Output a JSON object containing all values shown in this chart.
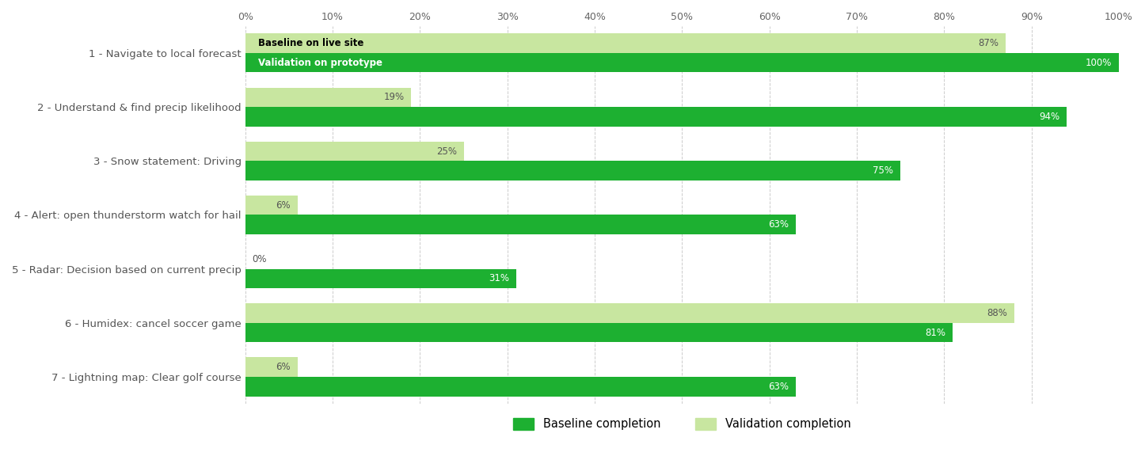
{
  "categories": [
    "1 - Navigate to local forecast",
    "2 - Understand & find precip likelihood",
    "3 - Snow statement: Driving",
    "4 - Alert: open thunderstorm watch for hail",
    "5 - Radar: Decision based on current precip",
    "6 - Humidex: cancel soccer game",
    "7 - Lightning map: Clear golf course"
  ],
  "baseline_values": [
    87,
    19,
    25,
    6,
    0,
    88,
    6
  ],
  "validation_values": [
    100,
    94,
    75,
    63,
    31,
    81,
    63
  ],
  "baseline_color": "#c8e6a0",
  "validation_color": "#1db031",
  "bar_height": 0.36,
  "xlim_max": 100,
  "xtick_labels": [
    "0%",
    "10%",
    "20%",
    "30%",
    "40%",
    "50%",
    "60%",
    "70%",
    "80%",
    "90%",
    "100%"
  ],
  "xtick_values": [
    0,
    10,
    20,
    30,
    40,
    50,
    60,
    70,
    80,
    90,
    100
  ],
  "legend_baseline_label": "Baseline completion",
  "legend_validation_label": "Validation completion",
  "bar1_label": "Baseline on live site",
  "bar2_label": "Validation on prototype",
  "background_color": "#ffffff",
  "grid_color": "#cccccc",
  "label_fontsize": 9.5,
  "tick_fontsize": 9,
  "annotation_fontsize": 8.5
}
